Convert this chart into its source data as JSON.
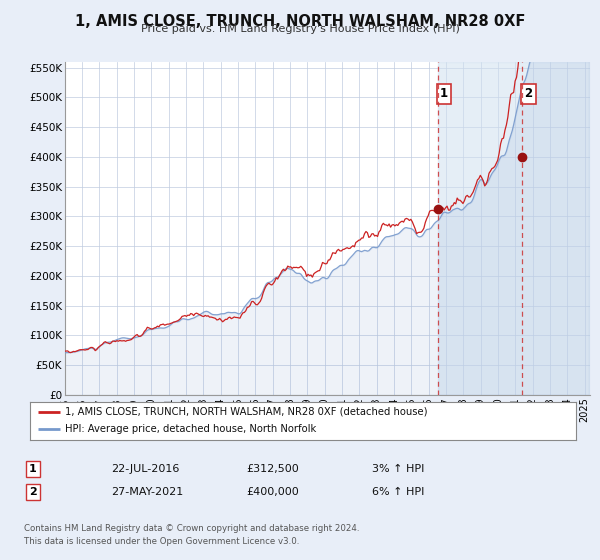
{
  "title": "1, AMIS CLOSE, TRUNCH, NORTH WALSHAM, NR28 0XF",
  "subtitle": "Price paid vs. HM Land Registry's House Price Index (HPI)",
  "background_color": "#e8eef8",
  "plot_bg_color": "#ffffff",
  "grid_color": "#c0cce0",
  "hpi_color": "#7799cc",
  "price_color": "#cc2222",
  "marker_color": "#991111",
  "shade_color": "#d0e0f0",
  "vline_color": "#cc3333",
  "sale1_x": 2016.55,
  "sale1_y": 312500,
  "sale2_x": 2021.41,
  "sale2_y": 400000,
  "legend_text1": "1, AMIS CLOSE, TRUNCH, NORTH WALSHAM, NR28 0XF (detached house)",
  "legend_text2": "HPI: Average price, detached house, North Norfolk",
  "note_text1": "Contains HM Land Registry data © Crown copyright and database right 2024.",
  "note_text2": "This data is licensed under the Open Government Licence v3.0.",
  "table_row1": [
    "1",
    "22-JUL-2016",
    "£312,500",
    "3% ↑ HPI"
  ],
  "table_row2": [
    "2",
    "27-MAY-2021",
    "£400,000",
    "6% ↑ HPI"
  ],
  "xmin": 1995.0,
  "xmax": 2025.3,
  "ylim": [
    0,
    560000
  ],
  "yticks": [
    0,
    50000,
    100000,
    150000,
    200000,
    250000,
    300000,
    350000,
    400000,
    450000,
    500000,
    550000
  ],
  "ytick_labels": [
    "£0",
    "£50K",
    "£100K",
    "£150K",
    "£200K",
    "£250K",
    "£300K",
    "£350K",
    "£400K",
    "£450K",
    "£500K",
    "£550K"
  ]
}
